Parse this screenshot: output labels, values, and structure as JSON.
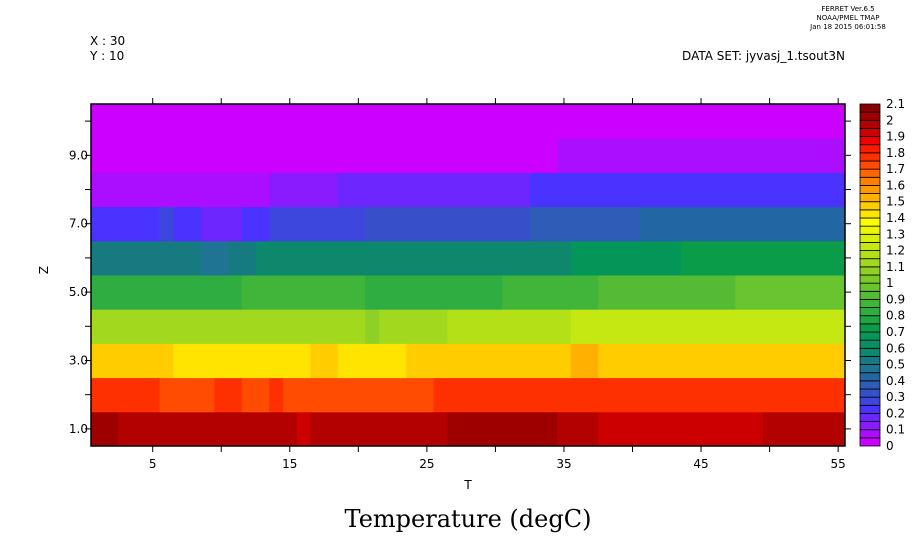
{
  "header": {
    "ferret_lines": [
      "FERRET  Ver.6.5",
      "NOAA/PMEL TMAP",
      "Jan 18 2015 06:01:58"
    ],
    "x_readout": "X : 30",
    "y_readout": "Y : 10",
    "dataset": "DATA SET: jyvasj_1.tsout3N"
  },
  "chart_data": {
    "type": "heatmap",
    "title": "Temperature (degC)",
    "xlabel": "T",
    "ylabel": "Z",
    "xlim": [
      0.5,
      55.5
    ],
    "ylim": [
      0.5,
      10.5
    ],
    "x_ticks": [
      5,
      15,
      25,
      35,
      45,
      55
    ],
    "x_tick_labels": [
      "5",
      "15",
      "25",
      "35",
      "45",
      "55"
    ],
    "y_ticks": [
      1,
      3,
      5,
      7,
      9
    ],
    "y_tick_labels": [
      "1.0",
      "3.0",
      "5.0",
      "7.0",
      "9.0"
    ],
    "colorbar": {
      "min": 0,
      "max": 2.1,
      "step": 0.05,
      "labels": [
        "0",
        "0.1",
        "0.2",
        "0.3",
        "0.4",
        "0.5",
        "0.6",
        "0.7",
        "0.8",
        "0.9",
        "1",
        "1.1",
        "1.2",
        "1.3",
        "1.4",
        "1.5",
        "1.6",
        "1.7",
        "1.8",
        "1.9",
        "2",
        "2.1"
      ],
      "palette": [
        "#cc00ff",
        "#aa0dff",
        "#8a1aff",
        "#6e26ff",
        "#4a33ff",
        "#3d47de",
        "#3550c8",
        "#2f5cb7",
        "#2266a3",
        "#1f7494",
        "#177a80",
        "#0e886c",
        "#0a8e62",
        "#049558",
        "#0a9c48",
        "#1ea544",
        "#2fad40",
        "#40b53a",
        "#55bb35",
        "#6ac430",
        "#7cca2a",
        "#8ed025",
        "#a2d91e",
        "#b4e018",
        "#c6e812",
        "#d8ef0a",
        "#ecf700",
        "#ffff00",
        "#ffe400",
        "#ffcc00",
        "#ffb000",
        "#ff9a00",
        "#ff8000",
        "#ff6600",
        "#ff4c00",
        "#ff3000",
        "#ff1a00",
        "#ee0000",
        "#cc0000",
        "#b30000",
        "#9e0000",
        "#8a0000"
      ]
    },
    "rows_note": "Each row is a Z level (1..10); runs are [value, number of consecutive T steps starting at T=1]",
    "rows": [
      {
        "z": 1,
        "runs": [
          [
            2.025,
            2
          ],
          [
            1.975,
            13
          ],
          [
            1.925,
            1
          ],
          [
            1.975,
            10
          ],
          [
            2.025,
            8
          ],
          [
            1.975,
            3
          ],
          [
            1.925,
            12
          ],
          [
            1.975,
            6
          ]
        ]
      },
      {
        "z": 2,
        "runs": [
          [
            1.775,
            5
          ],
          [
            1.725,
            4
          ],
          [
            1.775,
            2
          ],
          [
            1.725,
            2
          ],
          [
            1.775,
            1
          ],
          [
            1.725,
            11
          ],
          [
            1.775,
            30
          ]
        ]
      },
      {
        "z": 3,
        "runs": [
          [
            1.475,
            6
          ],
          [
            1.425,
            10
          ],
          [
            1.475,
            2
          ],
          [
            1.425,
            5
          ],
          [
            1.475,
            12
          ],
          [
            1.525,
            2
          ],
          [
            1.475,
            18
          ]
        ]
      },
      {
        "z": 4,
        "runs": [
          [
            1.125,
            20
          ],
          [
            1.075,
            1
          ],
          [
            1.125,
            5
          ],
          [
            1.175,
            9
          ],
          [
            1.225,
            20
          ]
        ]
      },
      {
        "z": 5,
        "runs": [
          [
            0.825,
            11
          ],
          [
            0.875,
            9
          ],
          [
            0.825,
            10
          ],
          [
            0.875,
            7
          ],
          [
            0.925,
            10
          ],
          [
            0.975,
            8
          ]
        ]
      },
      {
        "z": 6,
        "runs": [
          [
            0.525,
            8
          ],
          [
            0.475,
            2
          ],
          [
            0.525,
            2
          ],
          [
            0.575,
            23
          ],
          [
            0.675,
            8
          ],
          [
            0.725,
            12
          ]
        ]
      },
      {
        "z": 7,
        "runs": [
          [
            0.225,
            5
          ],
          [
            0.275,
            1
          ],
          [
            0.225,
            2
          ],
          [
            0.175,
            3
          ],
          [
            0.225,
            2
          ],
          [
            0.275,
            7
          ],
          [
            0.325,
            12
          ],
          [
            0.375,
            8
          ],
          [
            0.425,
            15
          ]
        ]
      },
      {
        "z": 8,
        "runs": [
          [
            0.075,
            13
          ],
          [
            0.125,
            5
          ],
          [
            0.175,
            14
          ],
          [
            0.225,
            23
          ]
        ]
      },
      {
        "z": 9,
        "runs": [
          [
            0.025,
            34
          ],
          [
            0.075,
            21
          ]
        ]
      },
      {
        "z": 10,
        "runs": [
          [
            0.025,
            55
          ]
        ]
      }
    ]
  }
}
